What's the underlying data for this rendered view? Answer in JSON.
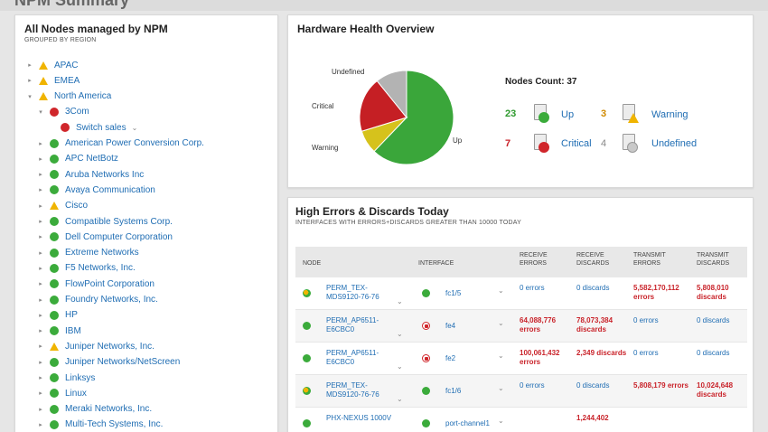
{
  "page_title": "NPM Summary",
  "tree_panel": {
    "title": "All Nodes managed by NPM",
    "subtitle": "GROUPED BY REGION",
    "items": [
      {
        "label": "APAC",
        "status": "warning",
        "indent": 0,
        "expanded": false
      },
      {
        "label": "EMEA",
        "status": "warning",
        "indent": 0,
        "expanded": false
      },
      {
        "label": "North America",
        "status": "warning",
        "indent": 0,
        "expanded": true
      },
      {
        "label": "3Com",
        "status": "critical",
        "indent": 1,
        "expanded": true
      },
      {
        "label": "Switch sales",
        "status": "critical",
        "indent": 2,
        "expanded": false,
        "dropdown": true
      },
      {
        "label": "American Power Conversion Corp.",
        "status": "up",
        "indent": 1,
        "expanded": false
      },
      {
        "label": "APC NetBotz",
        "status": "up",
        "indent": 1,
        "expanded": false
      },
      {
        "label": "Aruba Networks Inc",
        "status": "up",
        "indent": 1,
        "expanded": false
      },
      {
        "label": "Avaya Communication",
        "status": "up",
        "indent": 1,
        "expanded": false
      },
      {
        "label": "Cisco",
        "status": "warning",
        "indent": 1,
        "expanded": false
      },
      {
        "label": "Compatible Systems Corp.",
        "status": "up",
        "indent": 1,
        "expanded": false
      },
      {
        "label": "Dell Computer Corporation",
        "status": "up",
        "indent": 1,
        "expanded": false
      },
      {
        "label": "Extreme Networks",
        "status": "up",
        "indent": 1,
        "expanded": false
      },
      {
        "label": "F5 Networks, Inc.",
        "status": "up",
        "indent": 1,
        "expanded": false
      },
      {
        "label": "FlowPoint Corporation",
        "status": "up",
        "indent": 1,
        "expanded": false
      },
      {
        "label": "Foundry Networks, Inc.",
        "status": "up",
        "indent": 1,
        "expanded": false
      },
      {
        "label": "HP",
        "status": "up",
        "indent": 1,
        "expanded": false
      },
      {
        "label": "IBM",
        "status": "up",
        "indent": 1,
        "expanded": false
      },
      {
        "label": "Juniper Networks, Inc.",
        "status": "warning",
        "indent": 1,
        "expanded": false
      },
      {
        "label": "Juniper Networks/NetScreen",
        "status": "up",
        "indent": 1,
        "expanded": false
      },
      {
        "label": "Linksys",
        "status": "up",
        "indent": 1,
        "expanded": false
      },
      {
        "label": "Linux",
        "status": "up",
        "indent": 1,
        "expanded": false
      },
      {
        "label": "Meraki Networks, Inc.",
        "status": "up",
        "indent": 1,
        "expanded": false
      },
      {
        "label": "Multi-Tech Systems, Inc.",
        "status": "up",
        "indent": 1,
        "expanded": false
      }
    ]
  },
  "hardware_health": {
    "title": "Hardware Health Overview",
    "pie": {
      "slices": [
        {
          "label": "Up",
          "value": 23,
          "color": "#3aa63a"
        },
        {
          "label": "Warning",
          "value": 3,
          "color": "#d6c21c"
        },
        {
          "label": "Critical",
          "value": 7,
          "color": "#c51f24"
        },
        {
          "label": "Undefined",
          "value": 4,
          "color": "#b3b3b3"
        }
      ]
    },
    "nodes_count_label": "Nodes Count: 37",
    "statuses": [
      {
        "count": "23",
        "label": "Up"
      },
      {
        "count": "3",
        "label": "Warning"
      },
      {
        "count": "7",
        "label": "Critical"
      },
      {
        "count": "4",
        "label": "Undefined"
      }
    ]
  },
  "errors_panel": {
    "title": "High Errors & Discards Today",
    "subtitle": "INTERFACES WITH ERRORS+DISCARDS GREATER THAN 10000 TODAY",
    "headers": {
      "node": "NODE",
      "interface": "INTERFACE",
      "receive_errors": "RECEIVE ERRORS",
      "receive_discards": "RECEIVE DISCARDS",
      "transmit_errors": "TRANSMIT ERRORS",
      "transmit_discards": "TRANSMIT DISCARDS"
    },
    "rows": [
      {
        "node": "PERM_TEX-MDS9120-76-76",
        "iface": "fc1/5",
        "rx_err": "0 errors",
        "rx_disc": "0 discards",
        "tx_err": "5,582,170,112 errors",
        "tx_disc": "5,808,010 discards"
      },
      {
        "node": "PERM_AP6511-E6CBC0",
        "iface": "fe4",
        "rx_err": "64,088,776 errors",
        "rx_disc": "78,073,384 discards",
        "tx_err": "0 errors",
        "tx_disc": "0 discards"
      },
      {
        "node": "PERM_AP6511-E6CBC0",
        "iface": "fe2",
        "rx_err": "100,061,432 errors",
        "rx_disc": "2,349 discards",
        "tx_err": "0 errors",
        "tx_disc": "0 discards"
      },
      {
        "node": "PERM_TEX-MDS9120-76-76",
        "iface": "fc1/6",
        "rx_err": "0 errors",
        "rx_disc": "0 discards",
        "tx_err": "5,808,179 errors",
        "tx_disc": "10,024,648 discards"
      },
      {
        "node": "PHX-NEXUS 1000V",
        "iface": "port-channel1",
        "rx_err": "",
        "rx_disc": "1,244,402",
        "tx_err": "",
        "tx_disc": ""
      }
    ]
  }
}
